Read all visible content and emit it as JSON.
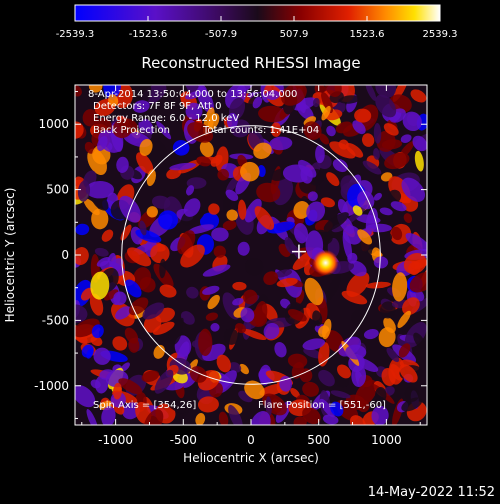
{
  "chart_data": {
    "type": "heatmap",
    "title": "Reconstructed RHESSI Image",
    "xlabel": "Heliocentric X (arcsec)",
    "ylabel": "Heliocentric Y (arcsec)",
    "xlim": [
      -1300,
      1300
    ],
    "ylim": [
      -1300,
      1300
    ],
    "x_ticks": [
      -1000,
      -500,
      0,
      500,
      1000
    ],
    "y_ticks": [
      -1000,
      -500,
      0,
      500,
      1000
    ],
    "colorbar": {
      "range": [
        -2539.3,
        2539.3
      ],
      "tick_values": [
        -2539.3,
        -1523.6,
        -507.9,
        507.9,
        1523.6,
        2539.3
      ],
      "tick_labels": [
        "-2539.3",
        "-1523.6",
        "-507.9",
        "507.9",
        "1523.6",
        "2539.3"
      ]
    },
    "annotations": {
      "time": "8-Apr-2014 13:50:04.000 to 13:56:04.000",
      "detectors": "Detectors: 7F 8F 9F, Att 0",
      "energy": "Energy Range: 6.0 - 12.0 keV",
      "method": "Back Projection",
      "counts": "Total counts: 1.41E+04",
      "spin_axis": "Spin Axis = [354,26]",
      "flare_position": "Flare Position = [551,-60]"
    },
    "solar_limb_radius_arcsec": 955,
    "crosshair_arcsec": [
      354,
      26
    ],
    "bright_source": {
      "x": 551,
      "y": -60
    }
  },
  "footer": {
    "timestamp": "14-May-2022 11:52"
  },
  "colors": {
    "background": "#000000",
    "limb": "#ffffff",
    "colormap": [
      "#0000ff",
      "#6010c8",
      "#3a0a5a",
      "#1a0a1a",
      "#7a0000",
      "#e02000",
      "#ff8a00",
      "#ffe000",
      "#ffffff"
    ]
  }
}
